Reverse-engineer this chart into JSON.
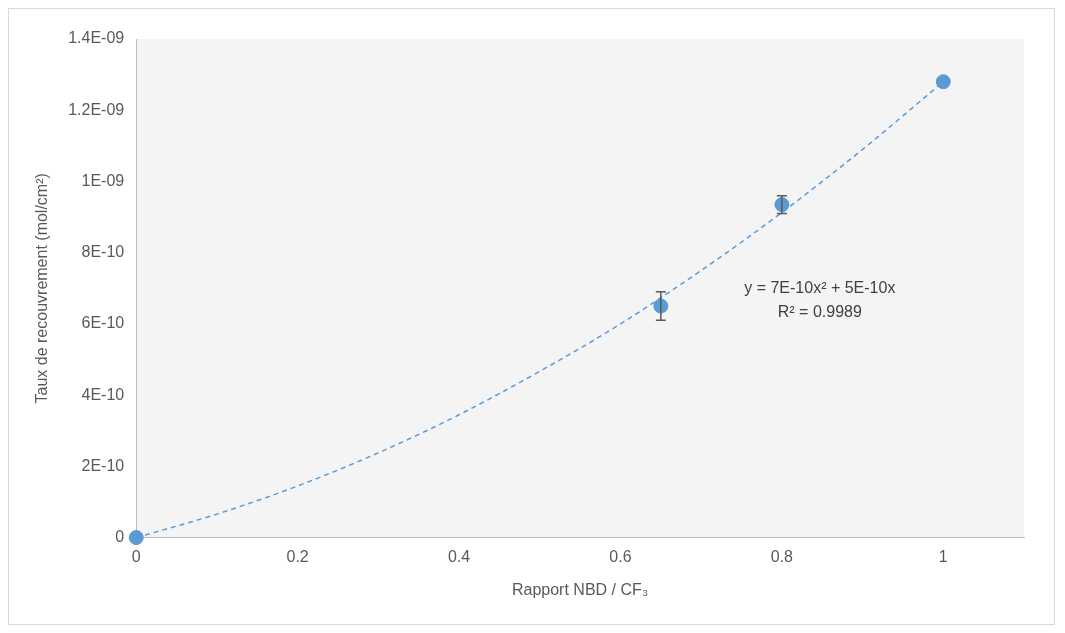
{
  "chart_data": {
    "type": "scatter",
    "xlabel": "Rapport NBD / CF₃",
    "ylabel": "Taux de recouvrement (mol/cm²)",
    "xlim": [
      0,
      1.1
    ],
    "xticks": [
      0,
      0.2,
      0.4,
      0.6,
      0.8,
      1
    ],
    "ylim": [
      0,
      1.4e-09
    ],
    "yticks": [
      {
        "value": 0,
        "label": "0"
      },
      {
        "value": 2e-10,
        "label": "2E-10"
      },
      {
        "value": 4e-10,
        "label": "4E-10"
      },
      {
        "value": 6e-10,
        "label": "6E-10"
      },
      {
        "value": 8e-10,
        "label": "8E-10"
      },
      {
        "value": 1e-09,
        "label": "1E-09"
      },
      {
        "value": 1.2e-09,
        "label": "1.2E-09"
      },
      {
        "value": 1.4e-09,
        "label": "1.4E-09"
      }
    ],
    "grid": false,
    "legend": false,
    "series": [
      {
        "type": "line",
        "color": "#5b9bd5",
        "line_style": "dashed",
        "marker": "none",
        "x": [
          0,
          0.1,
          0.2,
          0.3,
          0.4,
          0.5,
          0.6,
          0.7,
          0.8,
          0.9,
          1
        ],
        "values": [
          0,
          6.6e-11,
          1.45e-10,
          2.38e-10,
          3.45e-10,
          4.67e-10,
          6e-10,
          7.5e-10,
          9.13e-10,
          1.09e-09,
          1.28e-09
        ]
      },
      {
        "color": "#5b9bd5",
        "marker": "circle",
        "x": [
          0,
          0.65,
          0.8,
          1
        ],
        "values": [
          0,
          6.5e-10,
          9.35e-10,
          1.28e-09
        ],
        "errors": [
          null,
          4e-11,
          2.5e-11,
          null
        ]
      }
    ],
    "annotations": [
      "y = 7E-10x² + 5E-10x",
      "R² = 0.9989"
    ]
  }
}
